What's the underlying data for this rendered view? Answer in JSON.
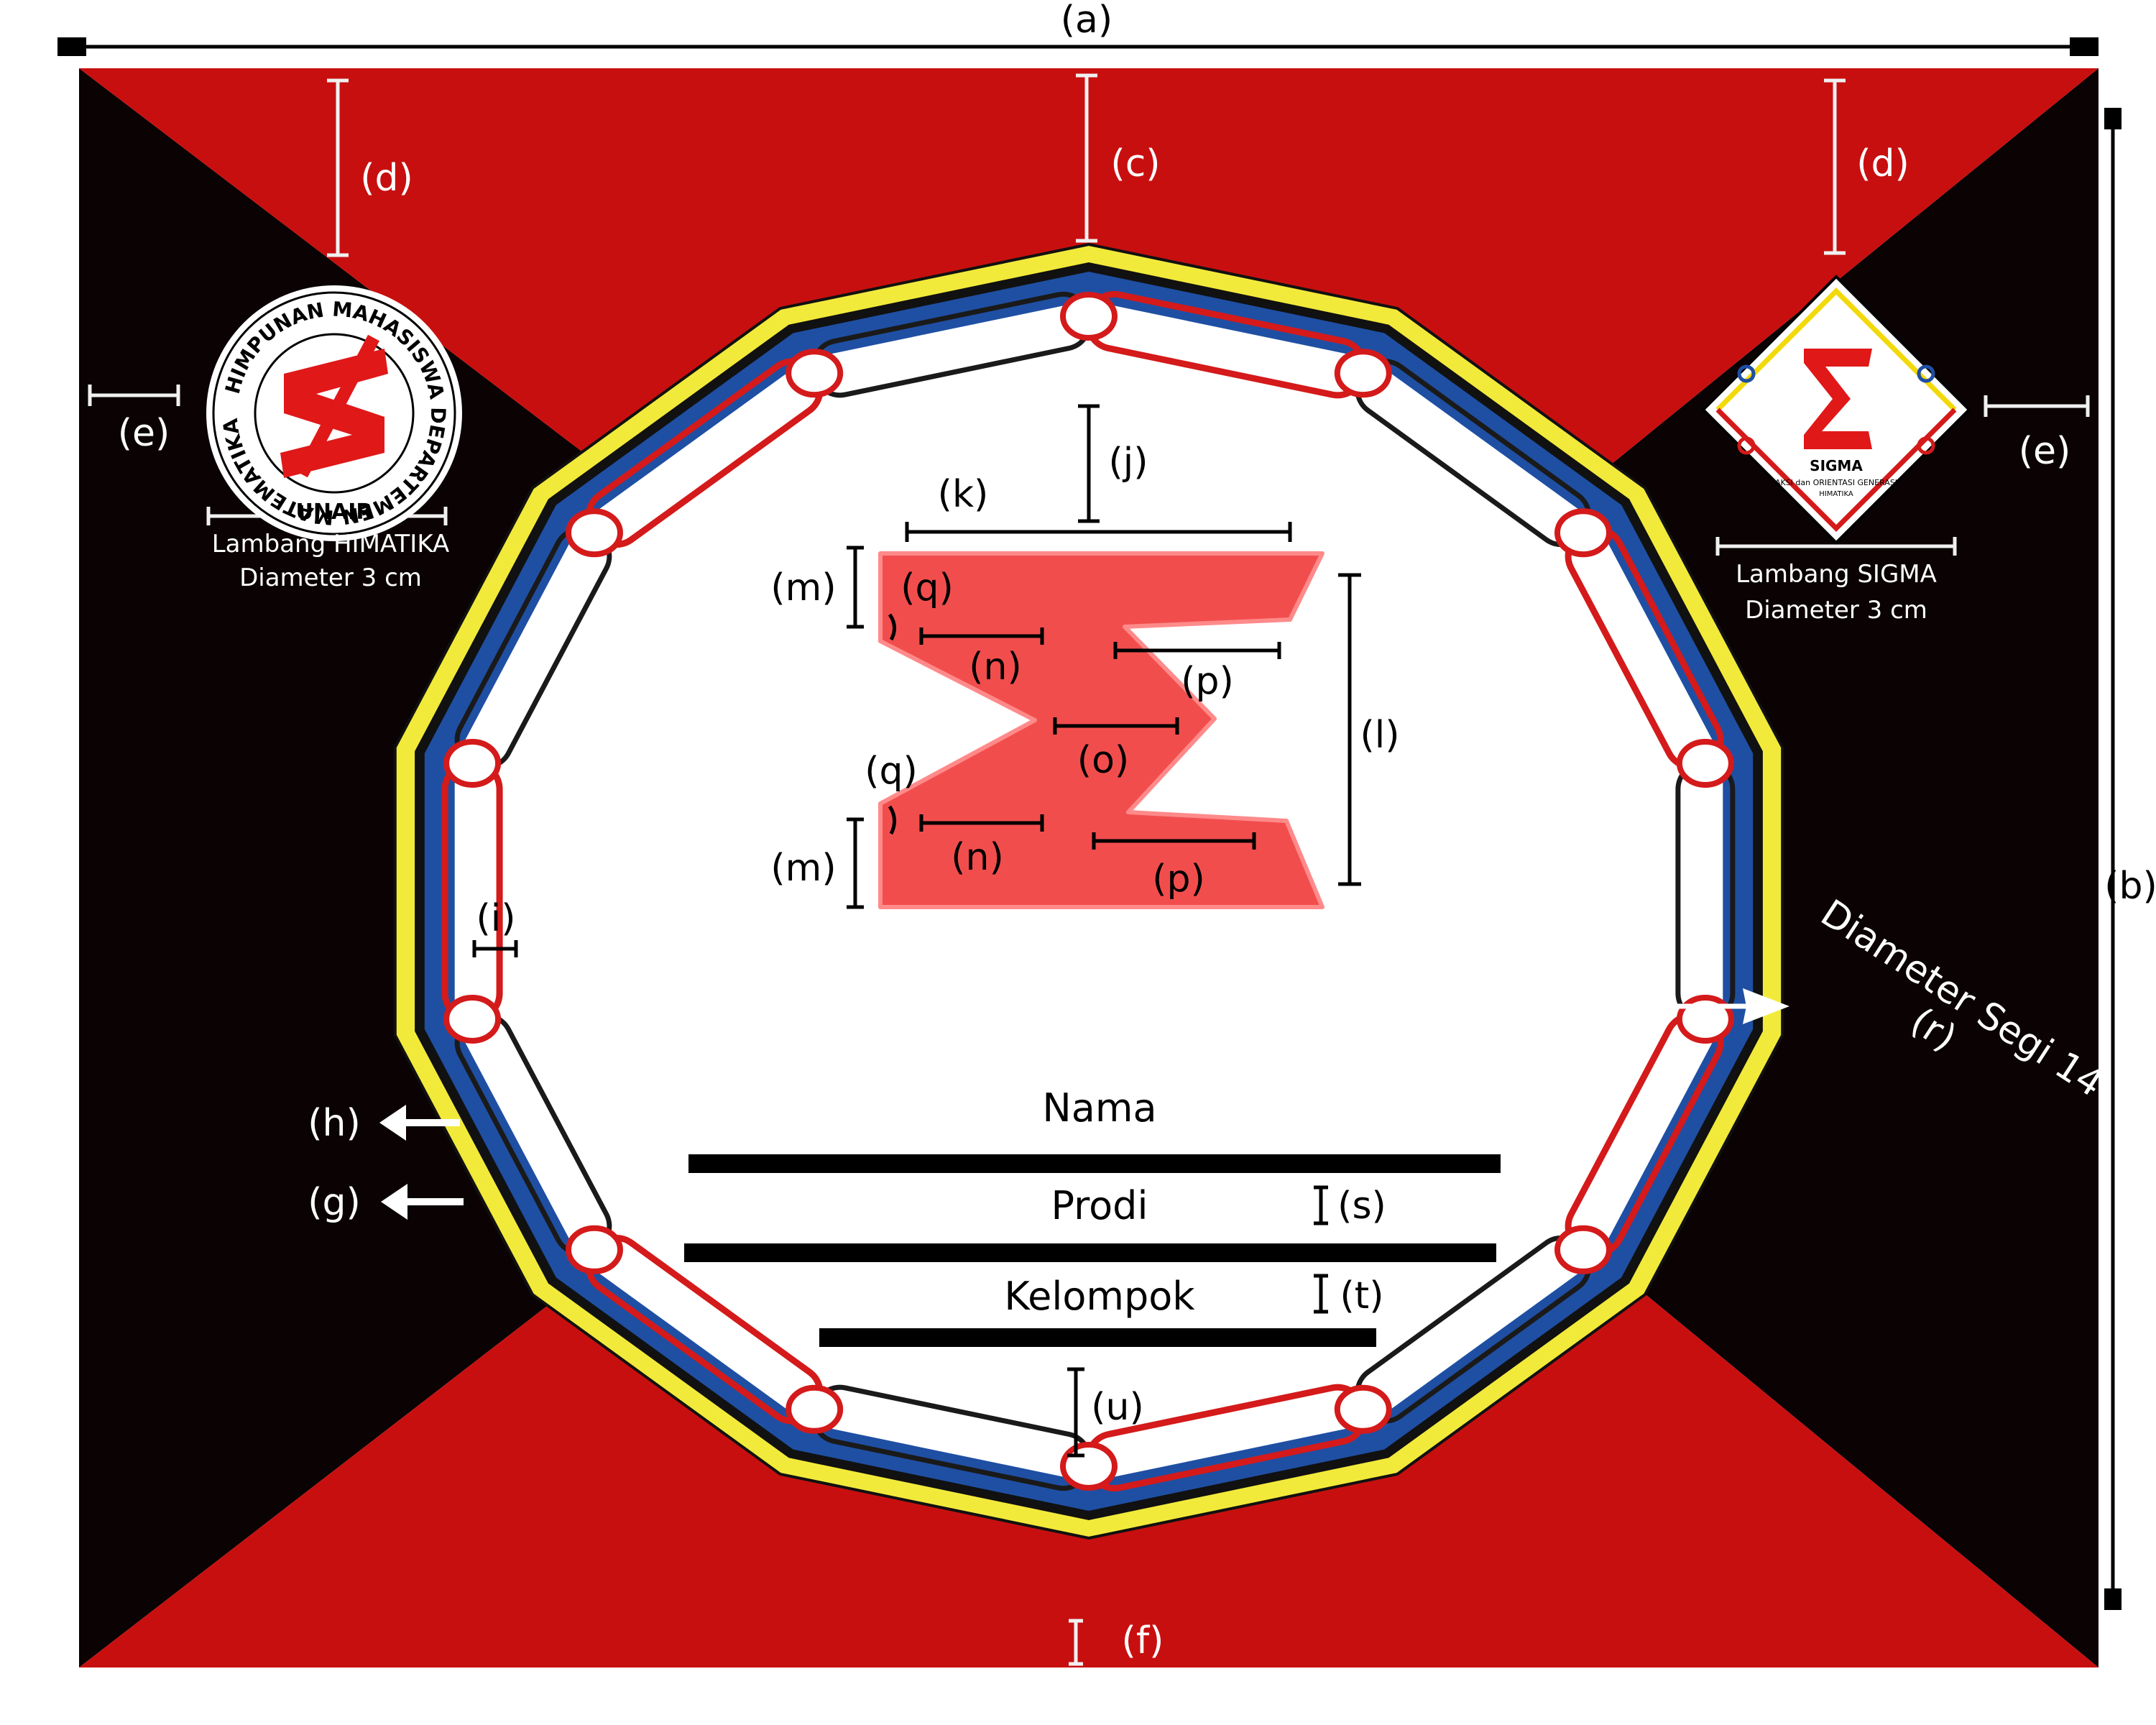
{
  "dimension_labels": {
    "a": "(a)",
    "b": "(b)",
    "c": "(c)",
    "d": "(d)",
    "e": "(e)",
    "f": "(f)",
    "g": "(g)",
    "h": "(h)",
    "i": "(i)",
    "j": "(j)",
    "k": "(k)",
    "l": "(l)",
    "m": "(m)",
    "n": "(n)",
    "o": "(o)",
    "p": "(p)",
    "q": "(q)",
    "r": "(r)",
    "s": "(s)",
    "t": "(t)",
    "u": "(u)"
  },
  "left_logo": {
    "ring_text": "HIMPUNAN MAHASISWA DEPARTEMEN MATEMATIKA",
    "bottom_text": "UNAIR",
    "caption_line1": "Lambang HIMATIKA",
    "caption_line2": "Diameter 3 cm"
  },
  "right_logo": {
    "title": "SIGMA",
    "subtitle": "AKSI dan ORIENTASI GENERASI",
    "subtitle2": "HIMATIKA",
    "caption_line1": "Lambang SIGMA",
    "caption_line2": "Diameter 3 cm"
  },
  "diameter_annotation": "Diameter Segi 14",
  "fields": {
    "nama": "Nama",
    "prodi": "Prodi",
    "kelompok": "Kelompok"
  },
  "colors": {
    "red": "#c80f0f",
    "black": "#0a0203",
    "yellow": "#f2ea3a",
    "blue": "#1f4fa3",
    "sigma": "#f24d4d",
    "chain_red": "#d41a1a"
  }
}
